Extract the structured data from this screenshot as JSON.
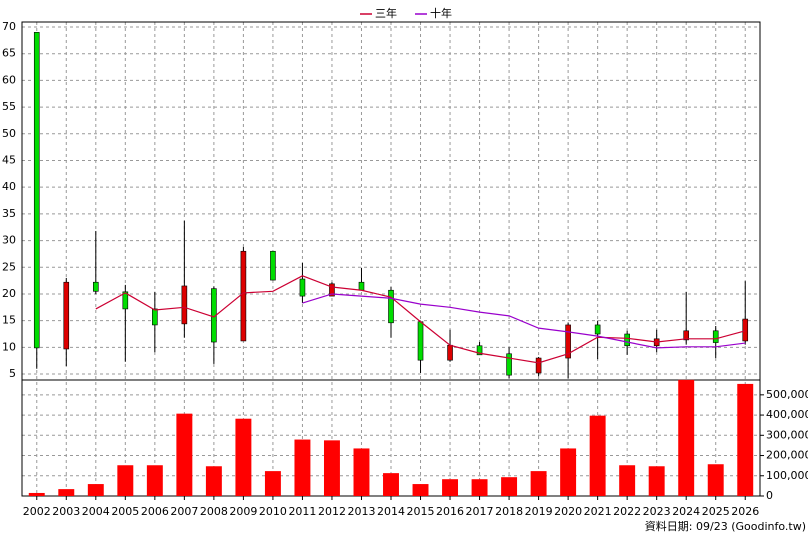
{
  "chart_data": {
    "type": "candlestick",
    "categories": [
      "2002",
      "2003",
      "2004",
      "2005",
      "2006",
      "2007",
      "2008",
      "2009",
      "2010",
      "2011",
      "2012",
      "2013",
      "2014",
      "2015",
      "2016",
      "2017",
      "2018",
      "2019",
      "2020",
      "2021",
      "2022",
      "2023",
      "2024",
      "2025",
      "2026"
    ],
    "candles": {
      "open": [
        69,
        9.7,
        22.2,
        20.4,
        17.2,
        14.4,
        21,
        11.2,
        28,
        22.8,
        19.6,
        22.2,
        20.7,
        14.8,
        7.6,
        10.3,
        8.8,
        5.2,
        8,
        14.2,
        12.5,
        10.3,
        11.4,
        13.1,
        11.2
      ],
      "high": [
        69,
        23,
        31.8,
        21.7,
        20.4,
        33.7,
        21.4,
        28.8,
        28,
        25.8,
        22.2,
        24.9,
        21.3,
        14.8,
        13.3,
        11,
        10,
        8.2,
        14.6,
        15,
        13.1,
        13.3,
        20.4,
        14,
        22.4
      ],
      "low": [
        6,
        6.5,
        20,
        7.3,
        9.1,
        11.8,
        6.9,
        11.2,
        22.6,
        18.3,
        19.6,
        20.7,
        11.8,
        5.2,
        7.3,
        8.6,
        4.2,
        4.6,
        4.2,
        7.8,
        8.6,
        9.1,
        10.5,
        8,
        10.5
      ],
      "close": [
        9.9,
        22.2,
        20.5,
        17.2,
        14.2,
        21.5,
        11,
        28,
        22.6,
        19.6,
        21.9,
        20.7,
        14.6,
        7.6,
        10.4,
        8.6,
        4.8,
        8,
        14.2,
        12.5,
        10.3,
        11.6,
        13.1,
        10.9,
        15.3
      ],
      "up_color": "#dd0000",
      "down_color": "#00dd00"
    },
    "series": [
      {
        "name": "三年",
        "color": "#cc0033",
        "values": [
          null,
          null,
          17.2,
          20.2,
          17,
          17.5,
          15.7,
          20.2,
          20.5,
          23.4,
          21.3,
          20.7,
          19.4,
          14.8,
          10.4,
          8.9,
          8,
          7.1,
          8.8,
          11.9,
          11.7,
          11,
          11.6,
          11.6,
          13.1
        ]
      },
      {
        "name": "十年",
        "color": "#9900cc",
        "values": [
          null,
          null,
          null,
          null,
          null,
          null,
          null,
          null,
          null,
          18.3,
          20,
          19.6,
          19.2,
          18.1,
          17.5,
          16.6,
          15.9,
          13.6,
          12.9,
          12.1,
          11,
          9.9,
          10.1,
          10.1,
          10.8
        ]
      }
    ],
    "ylim": [
      4,
      70
    ],
    "yticks": [
      5,
      10,
      15,
      20,
      25,
      30,
      35,
      40,
      45,
      50,
      55,
      60,
      65,
      70
    ],
    "volume": {
      "color": "#ff0000",
      "values": [
        15000,
        34000,
        59000,
        152000,
        152000,
        407000,
        147000,
        382000,
        123000,
        279000,
        275000,
        235000,
        113000,
        59000,
        83000,
        83000,
        93000,
        123000,
        235000,
        397000,
        152000,
        147000,
        574000,
        157000,
        554000
      ],
      "ylim": [
        0,
        600000
      ],
      "yticks": [
        0,
        {
          "value": 100000,
          "label": "100,000"
        },
        {
          "value": 200000,
          "label": "200,000"
        },
        {
          "value": 300000,
          "label": "300,000"
        },
        {
          "value": 400000,
          "label": "400,000"
        },
        {
          "value": 500000,
          "label": "500,000"
        }
      ]
    },
    "grid": true,
    "source": "資料日期: 09/23 (Goodinfo.tw)"
  }
}
